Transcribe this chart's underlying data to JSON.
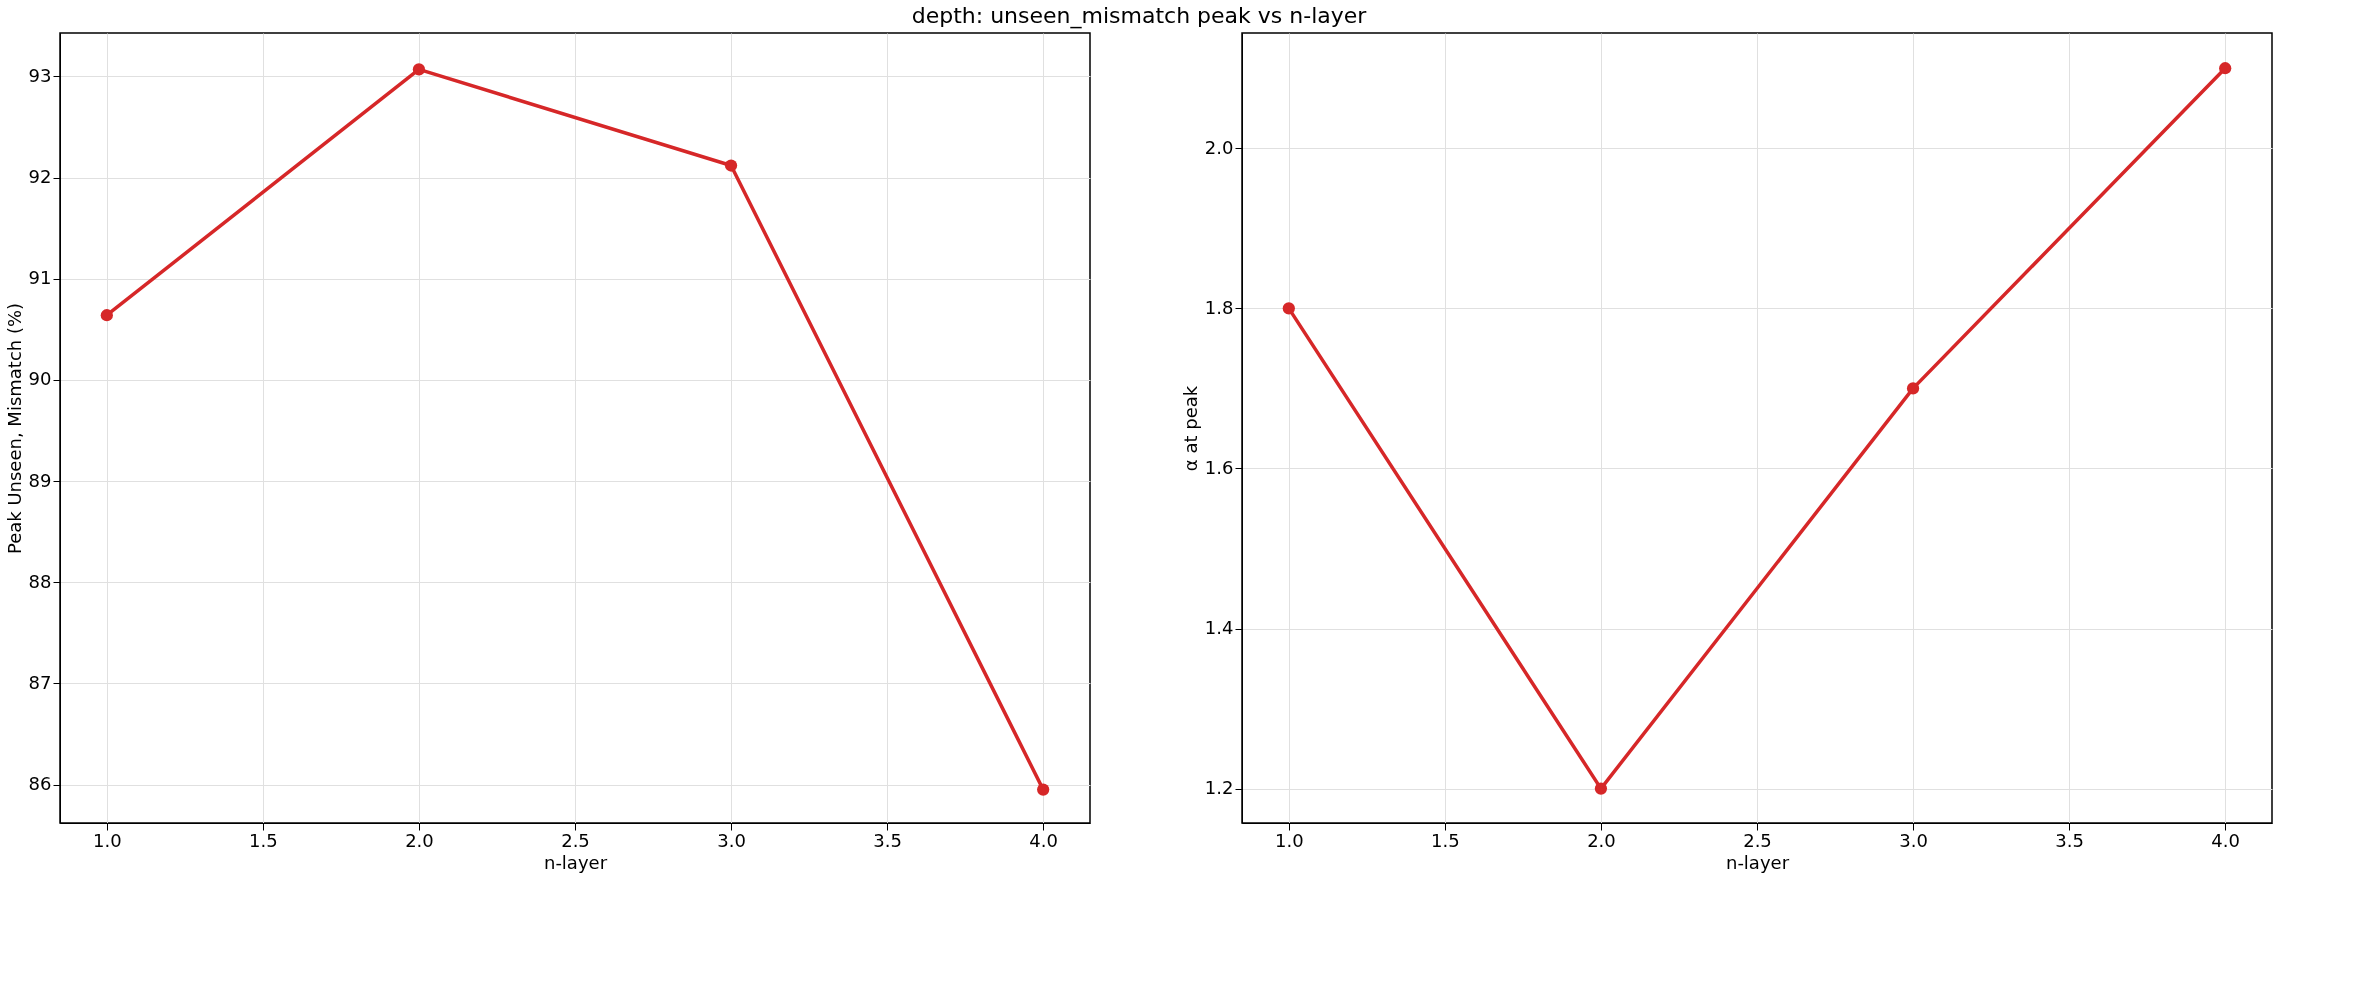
{
  "chart_data": [
    {
      "type": "line",
      "title": "depth: unseen_mismatch peak vs n-layer",
      "xlabel": "n-layer",
      "ylabel": "Peak Unseen, Mismatch (%)",
      "x": [
        1,
        2,
        3,
        4
      ],
      "series": [
        {
          "color": "#d62728",
          "values": [
            90.64,
            93.07,
            92.12,
            85.95
          ]
        }
      ],
      "xlim": [
        0.85,
        4.15
      ],
      "xticks": [
        {
          "value": 1,
          "label": "1.0"
        },
        {
          "value": 1.5,
          "label": "1.5"
        },
        {
          "value": 2,
          "label": "2.0"
        },
        {
          "value": 2.5,
          "label": "2.5"
        },
        {
          "value": 3,
          "label": "3.0"
        },
        {
          "value": 3.5,
          "label": "3.5"
        },
        {
          "value": 4,
          "label": "4.0"
        }
      ],
      "ylim": [
        85.62,
        93.43
      ],
      "yticks": [
        86,
        87,
        88,
        89,
        90,
        91,
        92,
        93
      ],
      "grid": true,
      "marker": "circle",
      "line_style": "solid"
    },
    {
      "type": "line",
      "xlabel": "n-layer",
      "ylabel": "α at peak",
      "x": [
        1,
        2,
        3,
        4
      ],
      "series": [
        {
          "color": "#d62728",
          "values": [
            1.8,
            1.2,
            1.7,
            2.1
          ]
        }
      ],
      "xlim": [
        0.85,
        4.15
      ],
      "xticks": [
        {
          "value": 1,
          "label": "1.0"
        },
        {
          "value": 1.5,
          "label": "1.5"
        },
        {
          "value": 2,
          "label": "2.0"
        },
        {
          "value": 2.5,
          "label": "2.5"
        },
        {
          "value": 3,
          "label": "3.0"
        },
        {
          "value": 3.5,
          "label": "3.5"
        },
        {
          "value": 4,
          "label": "4.0"
        }
      ],
      "ylim": [
        1.157,
        2.144
      ],
      "yticks": [
        1.2,
        1.4,
        1.6,
        1.8,
        {
          "value": 2.0,
          "label": "2.0"
        }
      ],
      "grid": true,
      "marker": "circle",
      "line_style": "solid"
    }
  ]
}
